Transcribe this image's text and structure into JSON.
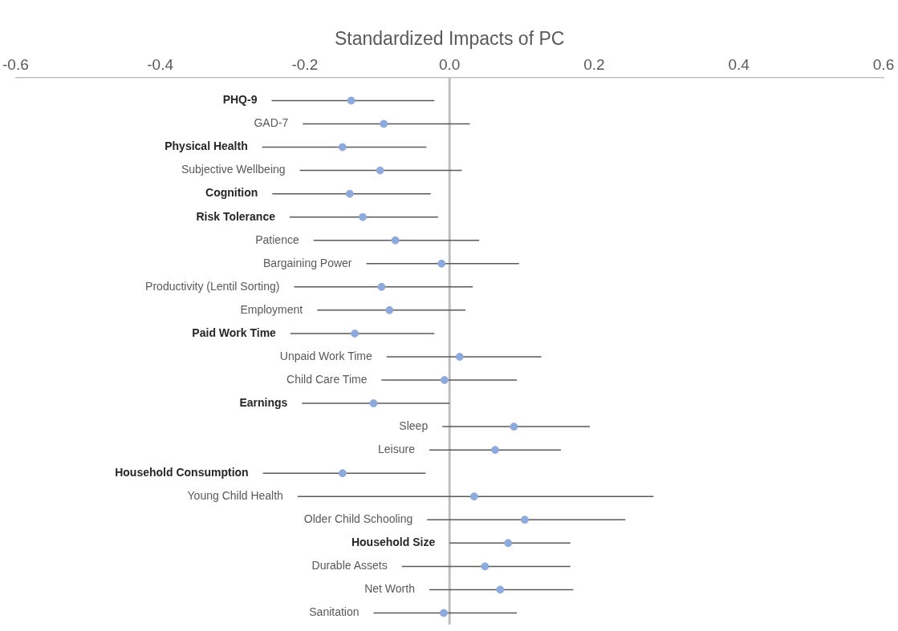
{
  "chart_data": {
    "type": "scatter",
    "orientation": "horizontal",
    "xlabel": "Standardized Impacts of PC",
    "categories": [
      "PHQ-9",
      "GAD-7",
      "Physical Health",
      "Subjective Wellbeing",
      "Cognition",
      "Risk Tolerance",
      "Patience",
      "Bargaining Power",
      "Productivity (Lentil Sorting)",
      "Employment",
      "Paid Work Time",
      "Unpaid Work Time",
      "Child Care Time",
      "Earnings",
      "Sleep",
      "Leisure",
      "Household Consumption",
      "Young Child Health",
      "Older Child Schooling",
      "Household Size",
      "Durable Assets",
      "Net Worth",
      "Sanitation"
    ],
    "values": [
      -0.136,
      -0.091,
      -0.148,
      -0.096,
      -0.138,
      -0.12,
      -0.075,
      -0.011,
      -0.094,
      -0.083,
      -0.131,
      0.014,
      -0.007,
      -0.105,
      0.089,
      0.063,
      -0.148,
      0.034,
      0.104,
      0.081,
      0.049,
      0.07,
      -0.008
    ],
    "errors": [
      [
        -0.246,
        -0.021
      ],
      [
        -0.203,
        0.028
      ],
      [
        -0.259,
        -0.032
      ],
      [
        -0.207,
        0.017
      ],
      [
        -0.245,
        -0.026
      ],
      [
        -0.221,
        -0.016
      ],
      [
        -0.188,
        0.041
      ],
      [
        -0.115,
        0.096
      ],
      [
        -0.215,
        0.032
      ],
      [
        -0.183,
        0.022
      ],
      [
        -0.22,
        -0.021
      ],
      [
        -0.087,
        0.127
      ],
      [
        -0.094,
        0.093
      ],
      [
        -0.204,
        0.0
      ],
      [
        -0.01,
        0.194
      ],
      [
        -0.028,
        0.154
      ],
      [
        -0.258,
        -0.033
      ],
      [
        -0.21,
        0.282
      ],
      [
        -0.031,
        0.243
      ],
      [
        0.0,
        0.167
      ],
      [
        -0.066,
        0.167
      ],
      [
        -0.028,
        0.171
      ],
      [
        -0.105,
        0.093
      ]
    ],
    "color": "#8eaadb",
    "marker": "circle",
    "xlim": [
      -0.6,
      0.6
    ],
    "xticks": [
      -0.6,
      -0.4,
      -0.2,
      {
        "value": 0,
        "label": "0.0"
      },
      0.2,
      0.4,
      0.6
    ],
    "ref_lines": [
      {
        "axis": "x",
        "value": 0,
        "color": "#bfbfbf"
      }
    ]
  }
}
